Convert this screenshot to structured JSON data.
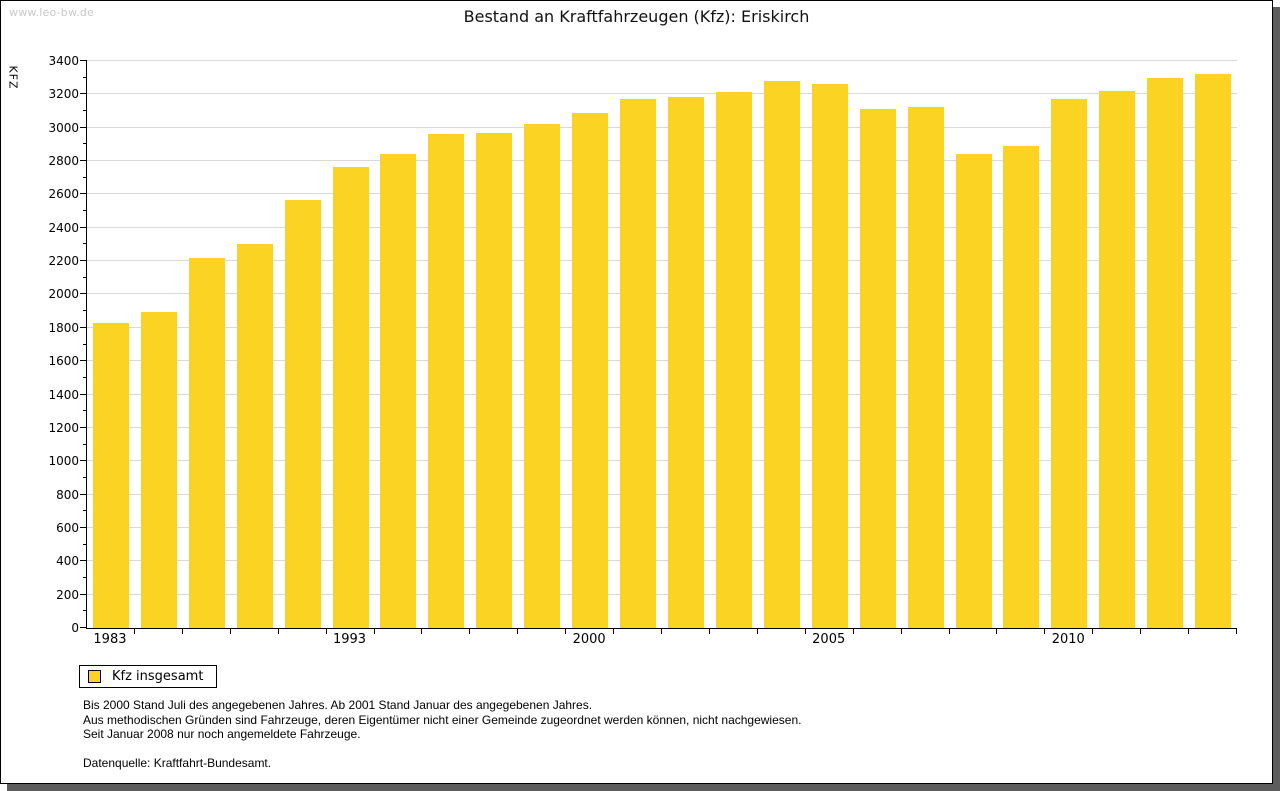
{
  "watermark": "www.leo-bw.de",
  "chart_data": {
    "type": "bar",
    "title": "Bestand an Kraftfahrzeugen (Kfz): Eriskirch",
    "ylabel": "KFZ",
    "xlabel": "",
    "ylim": [
      0,
      3400
    ],
    "y_major_step": 200,
    "y_minor_step": 100,
    "grid": "horizontal-major-only",
    "bar_color": "#fbd322",
    "values": [
      1830,
      1895,
      2220,
      2300,
      2565,
      2765,
      2845,
      2965,
      2970,
      3025,
      3090,
      3175,
      3185,
      3215,
      3280,
      3265,
      3115,
      3125,
      2845,
      2890,
      3170,
      3220,
      3300,
      3325
    ],
    "x_tick_labels": [
      {
        "label": "1983",
        "bar_index": 0
      },
      {
        "label": "1993",
        "bar_index": 5
      },
      {
        "label": "2000",
        "bar_index": 10
      },
      {
        "label": "2005",
        "bar_index": 15
      },
      {
        "label": "2010",
        "bar_index": 20
      }
    ],
    "legend": {
      "position": "bottom-left",
      "entries": [
        {
          "label": "Kfz insgesamt",
          "color": "#fbd322"
        }
      ]
    }
  },
  "footnotes": {
    "lines": [
      "Bis 2000 Stand Juli des angegebenen Jahres. Ab 2001 Stand Januar des angegebenen Jahres.",
      "Aus methodischen Gründen sind Fahrzeuge, deren Eigentümer nicht einer Gemeinde zugeordnet werden können, nicht nachgewiesen.",
      "Seit Januar 2008 nur noch angemeldete Fahrzeuge."
    ],
    "source": "Datenquelle: Kraftfahrt-Bundesamt."
  }
}
